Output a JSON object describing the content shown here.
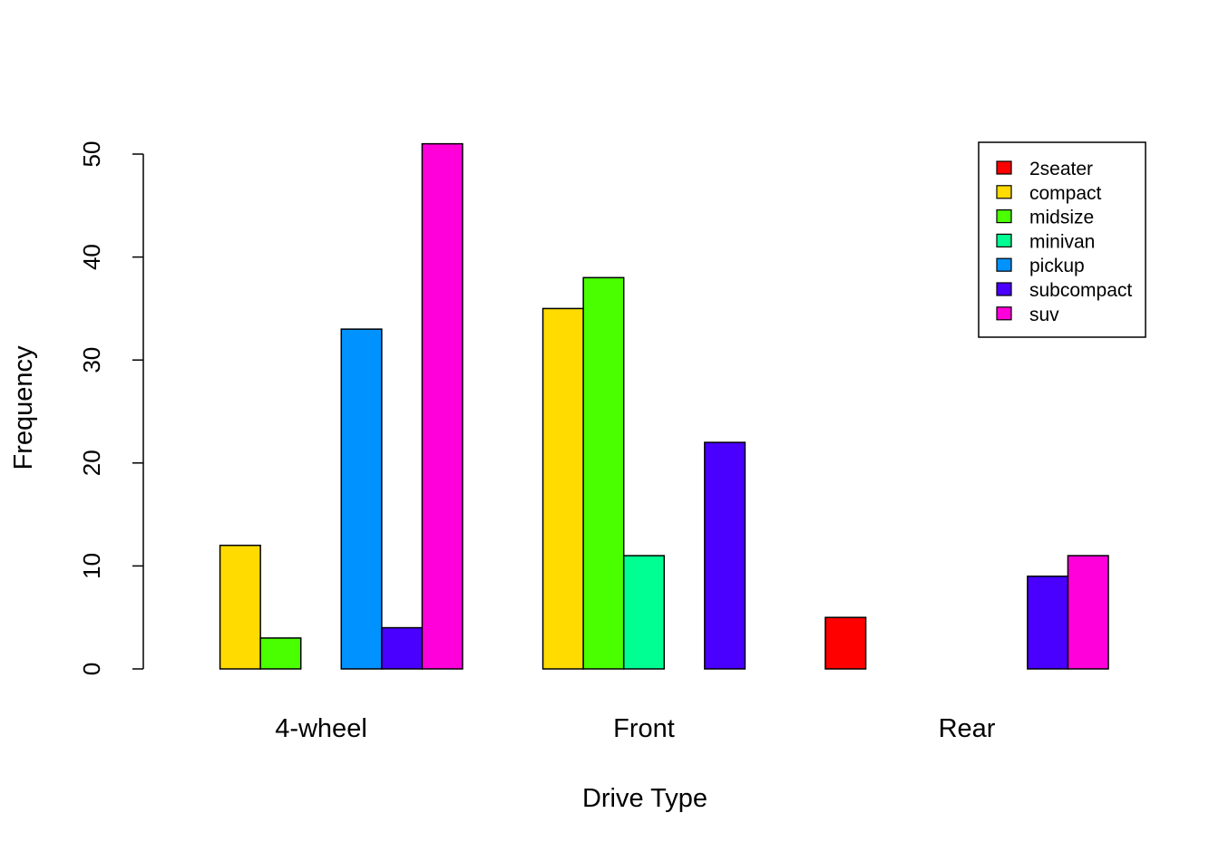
{
  "chart_data": {
    "type": "bar",
    "layout": "grouped",
    "title": "",
    "xlabel": "Drive Type",
    "ylabel": "Frequency",
    "ylim": [
      0,
      50
    ],
    "yticks": [
      0,
      10,
      20,
      30,
      40,
      50
    ],
    "grid": false,
    "legend_position": "top-right",
    "categories": [
      "4-wheel",
      "Front",
      "Rear"
    ],
    "series": [
      {
        "name": "2seater",
        "color": "#FF0000",
        "values": [
          0,
          0,
          5
        ]
      },
      {
        "name": "compact",
        "color": "#FFDB00",
        "values": [
          12,
          35,
          0
        ]
      },
      {
        "name": "midsize",
        "color": "#49FF00",
        "values": [
          3,
          38,
          0
        ]
      },
      {
        "name": "minivan",
        "color": "#00FF92",
        "values": [
          0,
          11,
          0
        ]
      },
      {
        "name": "pickup",
        "color": "#0092FF",
        "values": [
          33,
          0,
          0
        ]
      },
      {
        "name": "subcompact",
        "color": "#4900FF",
        "values": [
          4,
          22,
          9
        ]
      },
      {
        "name": "suv",
        "color": "#FF00DB",
        "values": [
          51,
          0,
          11
        ]
      }
    ]
  }
}
